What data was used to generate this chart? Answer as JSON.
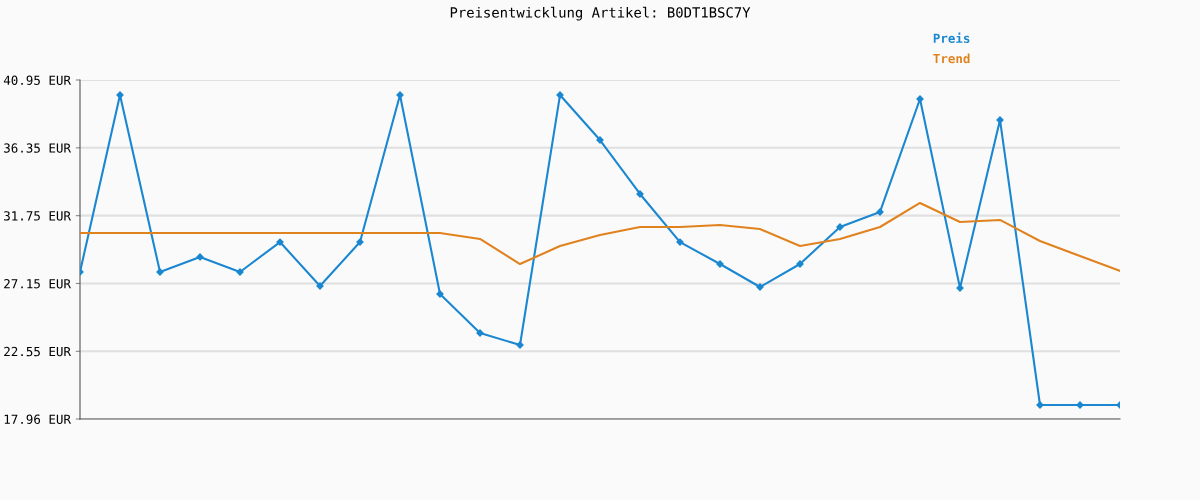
{
  "chart_data": {
    "type": "line",
    "title": "Preisentwicklung Artikel: B0DT1BSC7Y",
    "categories": [
      null,
      null,
      null,
      null,
      null,
      null,
      null,
      null,
      null,
      null,
      null,
      null,
      null,
      null,
      null,
      null,
      null,
      null,
      null,
      null,
      null,
      null,
      null,
      null,
      null,
      null,
      null
    ],
    "series": [
      {
        "name": "Preis",
        "color": "#1a87d0",
        "marker": "diamond",
        "values": [
          27.93,
          39.93,
          27.93,
          28.95,
          27.93,
          29.96,
          26.98,
          29.96,
          39.93,
          26.44,
          23.79,
          22.98,
          39.93,
          36.88,
          33.22,
          29.96,
          28.47,
          26.91,
          28.47,
          30.98,
          32.0,
          39.66,
          26.84,
          38.24,
          18.91,
          18.91,
          18.91
        ]
      },
      {
        "name": "Trend",
        "color": "#e0821e",
        "marker": "none",
        "values": [
          30.57,
          30.57,
          30.57,
          30.57,
          30.57,
          30.57,
          30.57,
          30.57,
          30.57,
          30.57,
          30.17,
          28.47,
          29.69,
          30.44,
          30.98,
          30.98,
          31.12,
          30.84,
          29.69,
          30.17,
          30.98,
          32.61,
          31.32,
          31.46,
          30.03,
          29.01,
          28.0
        ]
      }
    ],
    "ylim": [
      17.96,
      40.95
    ],
    "yticks": [
      {
        "value": 17.96,
        "label": "17.96 EUR"
      },
      {
        "value": 22.55,
        "label": "22.55 EUR"
      },
      {
        "value": 27.15,
        "label": "27.15 EUR"
      },
      {
        "value": 31.75,
        "label": "31.75 EUR"
      },
      {
        "value": 36.35,
        "label": "36.35 EUR"
      },
      {
        "value": 40.95,
        "label": "40.95 EUR"
      }
    ],
    "grid": "y",
    "legend": "top right"
  }
}
